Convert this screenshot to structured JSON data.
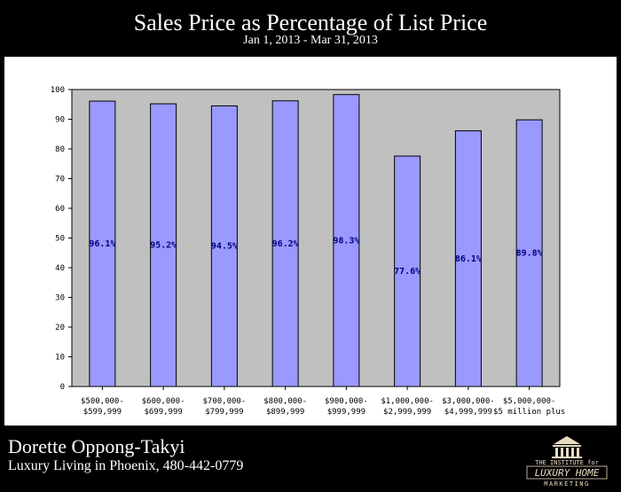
{
  "header": {
    "title": "Sales Price as Percentage of List Price",
    "subtitle": "Jan 1, 2013 - Mar 31, 2013"
  },
  "chart_data": {
    "type": "bar",
    "title": "Sales Price as Percentage of List Price",
    "subtitle": "Jan 1, 2013 - Mar 31, 2013",
    "xlabel": "",
    "ylabel": "",
    "ylim": [
      0,
      100
    ],
    "yticks": [
      0,
      10,
      20,
      30,
      40,
      50,
      60,
      70,
      80,
      90,
      100
    ],
    "grid": false,
    "legend": "none",
    "categories": [
      [
        "$500,000-",
        "$599,999"
      ],
      [
        "$600,000-",
        "$699,999"
      ],
      [
        "$700,000-",
        "$799,999"
      ],
      [
        "$800,000-",
        "$899,999"
      ],
      [
        "$900,000-",
        "$999,999"
      ],
      [
        "$1,000,000-",
        "$2,999,999"
      ],
      [
        "$3,000,000-",
        "$4,999,999"
      ],
      [
        "$5,000,000-",
        "$5 million plus"
      ]
    ],
    "values": [
      96.1,
      95.2,
      94.5,
      96.2,
      98.3,
      77.6,
      86.1,
      89.8
    ],
    "data_labels": [
      "96.1%",
      "95.2%",
      "94.5%",
      "96.2%",
      "98.3%",
      "77.6%",
      "86.1%",
      "89.8%"
    ],
    "colors": {
      "bar": "#9999ff",
      "plot_bg": "#c0c0c0",
      "label": "#000080"
    }
  },
  "footer": {
    "name": "Dorette Oppong-Takyi",
    "line": "Luxury Living in Phoenix, 480-442-0779",
    "logo": {
      "icon": "columned-building-icon",
      "line1": "THE INSTITUTE for",
      "line2": "LUXURY HOME",
      "line3": "MARKETING"
    }
  }
}
